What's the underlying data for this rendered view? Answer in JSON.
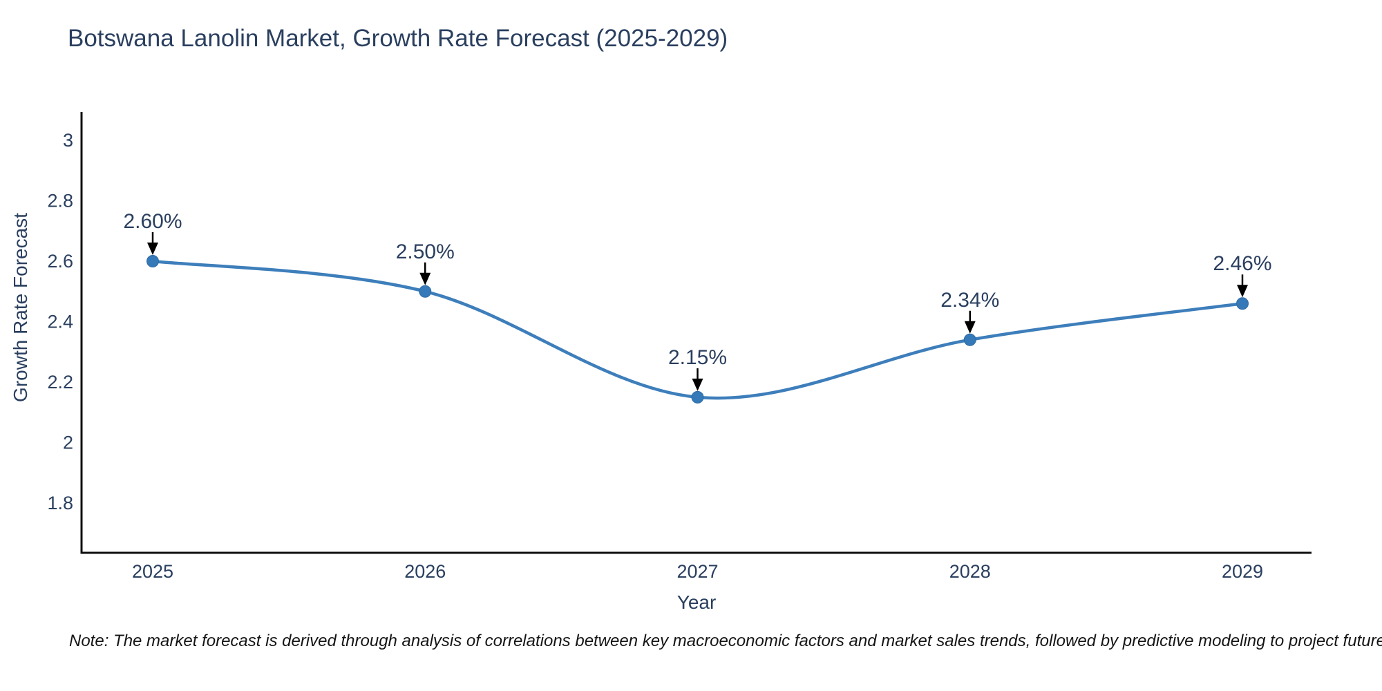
{
  "note": "Note: The market forecast is derived through analysis of correlations between key macroeconomic factors and market sales trends, followed by predictive modeling to project future sales",
  "colors": {
    "background": "#ffffff",
    "title_text": "#2a3f5f",
    "tick_text": "#2a3f5f",
    "axis_line": "#0f0f0f",
    "series_line": "#3d7ebb",
    "marker_fill": "#3579b8",
    "marker_edge": "#2f6ba3",
    "arrow": "#000000",
    "annotation_text": "#2a3f5f",
    "note_text": "#151515"
  },
  "chart_data": {
    "type": "line",
    "title": "Botswana Lanolin Market, Growth Rate Forecast (2025-2029)",
    "xlabel": "Year",
    "ylabel": "Growth Rate Forecast",
    "x": [
      2025,
      2026,
      2027,
      2028,
      2029
    ],
    "series": [
      {
        "name": "Growth Rate Forecast",
        "values": [
          2.6,
          2.5,
          2.15,
          2.34,
          2.46
        ]
      }
    ],
    "point_labels": [
      "2.60%",
      "2.50%",
      "2.15%",
      "2.34%",
      "2.46%"
    ],
    "yticks": [
      1.8,
      2,
      2.2,
      2.4,
      2.6,
      2.8,
      3
    ],
    "ylim": [
      1.64,
      3.09
    ],
    "xlim": [
      2024.74,
      2029.25
    ],
    "grid": false,
    "legend": "none",
    "line_shape": "spline",
    "markers": true,
    "annotations_arrows": true
  }
}
